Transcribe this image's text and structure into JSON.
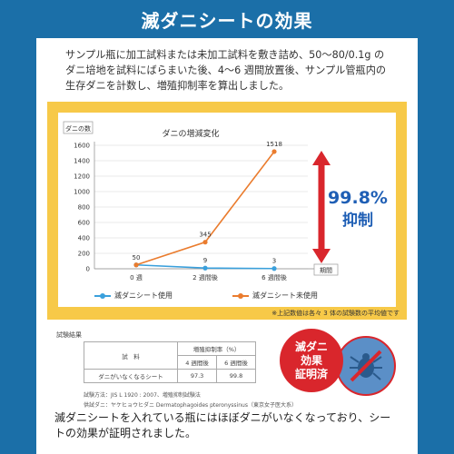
{
  "header": {
    "title": "滅ダニシートの効果"
  },
  "intro": {
    "text": "サンプル瓶に加工試料または未加工試料を敷き詰め、50〜80/0.1g のダニ培地を試料にばらまいた後、4〜6 週間放置後、サンプル管瓶内の生存ダニを計数し、増殖抑制率を算出しました。"
  },
  "chart_data": {
    "type": "line",
    "title": "ダニの増減変化",
    "ylabel": "ダニの数",
    "xlabel": "期間",
    "categories": [
      "0 週",
      "2 週間後",
      "6 週間後"
    ],
    "yticks": [
      0,
      200,
      400,
      600,
      800,
      1000,
      1200,
      1400,
      1600
    ],
    "ylim": [
      0,
      1600
    ],
    "series": [
      {
        "name": "滅ダニシート使用",
        "values": [
          50,
          9,
          3
        ],
        "labels": [
          "",
          "9",
          "3"
        ],
        "color": "#3aa0dc"
      },
      {
        "name": "滅ダニシート未使用",
        "values": [
          50,
          345,
          1518
        ],
        "labels": [
          "50",
          "345",
          "1518"
        ],
        "color": "#ea7c2e"
      }
    ],
    "annotation": {
      "line1": "99.8%",
      "line2": "抑制",
      "color": "#d9262c",
      "text_color": "#1f5fb5"
    },
    "legend_position": "bottom"
  },
  "footnote": "※上記数値は各々 3 体の試験数の平均値です",
  "results": {
    "title": "試験結果",
    "col_sample": "試　料",
    "col_rate": "増殖抑制率（%）",
    "col_4w": "4 週間後",
    "col_6w": "6 週間後",
    "row_name": "ダニがいなくなるシート",
    "row_4w": "97.3",
    "row_6w": "99.8",
    "standard": "試験方法：JIS L 1920 : 2007、増殖抑制試験法",
    "species": "供試ダニ：ヤケヒョウヒダニ Dermatophagoides pteronyssinus（東京女子医大系）"
  },
  "badge": {
    "line1": "滅ダニ",
    "line2": "効果",
    "line3": "証明済"
  },
  "icons": {
    "mite": "mite-icon",
    "arrow": "double-arrow-icon"
  },
  "conclusion": "滅ダニシートを入れている瓶にはほぼダニがいなくなっており、シートの効果が証明されました。"
}
